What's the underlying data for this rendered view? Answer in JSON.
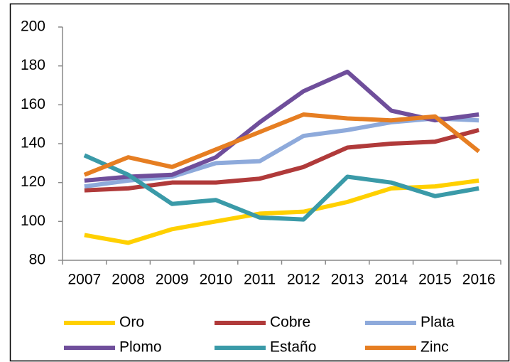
{
  "chart_data": {
    "type": "line",
    "categories": [
      "2007",
      "2008",
      "2009",
      "2010",
      "2011",
      "2012",
      "2013",
      "2014",
      "2015",
      "2016"
    ],
    "series": [
      {
        "name": "Oro",
        "color": "#ffd000",
        "values": [
          93,
          89,
          96,
          100,
          104,
          105,
          110,
          117,
          118,
          121
        ]
      },
      {
        "name": "Cobre",
        "color": "#b03a3a",
        "values": [
          116,
          117,
          120,
          120,
          122,
          128,
          138,
          140,
          141,
          147
        ]
      },
      {
        "name": "Plata",
        "color": "#8eaadb",
        "values": [
          118,
          121,
          123,
          130,
          131,
          144,
          147,
          151,
          153,
          152
        ]
      },
      {
        "name": "Plomo",
        "color": "#6f4e9b",
        "values": [
          121,
          123,
          124,
          133,
          151,
          167,
          177,
          157,
          152,
          155
        ]
      },
      {
        "name": "Estaño",
        "color": "#3a9aa8",
        "values": [
          134,
          124,
          109,
          111,
          102,
          101,
          123,
          120,
          113,
          117
        ]
      },
      {
        "name": "Zinc",
        "color": "#e67e22",
        "values": [
          124,
          133,
          128,
          137,
          146,
          155,
          153,
          152,
          154,
          136
        ]
      }
    ],
    "ylim": [
      80,
      200
    ],
    "yticks": [
      80,
      100,
      120,
      140,
      160,
      180,
      200
    ]
  }
}
